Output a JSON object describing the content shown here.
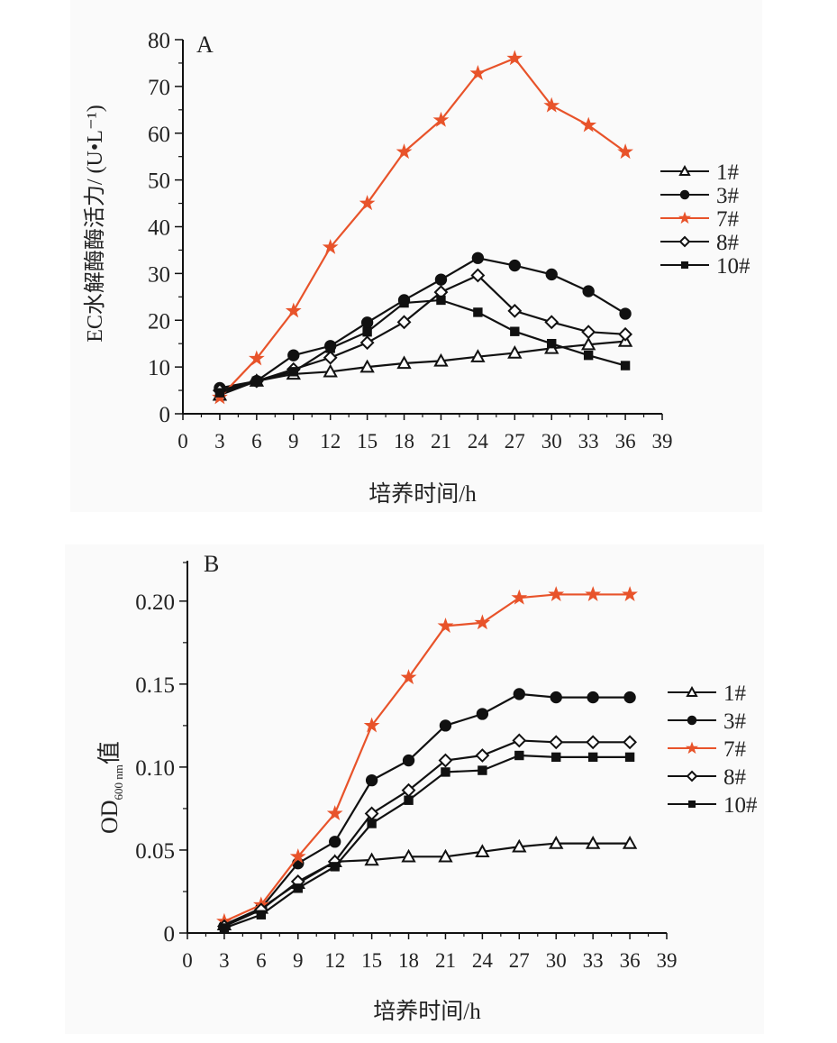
{
  "colors": {
    "highlight": "#e8532a",
    "series_default": "#111111",
    "panel_background": "#fafafa"
  },
  "chart_data": [
    {
      "type": "line",
      "panel_label": "A",
      "title": "",
      "xlabel": "培养时间/h",
      "ylabel": "EC水解酶酶活力/ (U•L⁻¹)",
      "xlim": [
        0,
        39
      ],
      "ylim": [
        0,
        80
      ],
      "x_ticks": [
        0,
        3,
        6,
        9,
        12,
        15,
        18,
        21,
        24,
        27,
        30,
        33,
        36,
        39
      ],
      "x_tick_labels": [
        "0",
        "3",
        "6",
        "9",
        "12",
        "15",
        "18",
        "21",
        "24",
        "27",
        "30",
        "33",
        "36",
        "39"
      ],
      "y_ticks": [
        0,
        10,
        20,
        30,
        40,
        50,
        60,
        70,
        80
      ],
      "y_tick_labels": [
        "0",
        "10",
        "20",
        "30",
        "40",
        "50",
        "60",
        "70",
        "80"
      ],
      "grid": false,
      "legend_position": "right",
      "x": [
        3,
        6,
        9,
        12,
        15,
        18,
        21,
        24,
        27,
        30,
        33,
        36
      ],
      "series": [
        {
          "name": "1#",
          "marker": "triangle-open",
          "color": "#111111",
          "values": [
            4.0,
            7.0,
            8.5,
            9.0,
            10.0,
            10.8,
            11.3,
            12.2,
            13.0,
            14.0,
            14.8,
            15.5
          ]
        },
        {
          "name": "3#",
          "marker": "circle-filled",
          "color": "#111111",
          "values": [
            5.5,
            7.0,
            12.5,
            14.5,
            19.5,
            24.3,
            28.7,
            33.3,
            31.7,
            29.8,
            26.2,
            21.4
          ]
        },
        {
          "name": "7#",
          "marker": "star-filled",
          "color": "#e8532a",
          "values": [
            3.5,
            11.8,
            22.0,
            35.6,
            45.0,
            56.0,
            62.8,
            72.8,
            76.0,
            65.9,
            61.7,
            56.0
          ]
        },
        {
          "name": "8#",
          "marker": "diamond-open",
          "color": "#111111",
          "values": [
            5.0,
            7.0,
            9.5,
            12.0,
            15.2,
            19.6,
            26.0,
            29.6,
            22.0,
            19.6,
            17.5,
            17.0
          ]
        },
        {
          "name": "10#",
          "marker": "square-filled",
          "color": "#111111",
          "values": [
            4.5,
            7.0,
            9.0,
            14.0,
            17.5,
            23.7,
            24.3,
            21.7,
            17.6,
            15.0,
            12.5,
            10.3
          ]
        }
      ]
    },
    {
      "type": "line",
      "panel_label": "B",
      "title": "",
      "xlabel": "培养时间/h",
      "ylabel": "OD",
      "ylabel_subscript": "600 nm",
      "ylabel_suffix": "值",
      "xlim": [
        0,
        39
      ],
      "ylim": [
        0,
        0.22
      ],
      "x_ticks": [
        0,
        3,
        6,
        9,
        12,
        15,
        18,
        21,
        24,
        27,
        30,
        33,
        36,
        39
      ],
      "x_tick_labels": [
        "0",
        "3",
        "6",
        "9",
        "12",
        "15",
        "18",
        "21",
        "24",
        "27",
        "30",
        "33",
        "36",
        "39"
      ],
      "y_ticks": [
        0,
        0.05,
        0.1,
        0.15,
        0.2
      ],
      "y_tick_labels": [
        "0",
        "0.05",
        "0.10",
        "0.15",
        "0.20"
      ],
      "grid": false,
      "legend_position": "right",
      "x": [
        3,
        6,
        9,
        12,
        15,
        18,
        21,
        24,
        27,
        30,
        33,
        36
      ],
      "series": [
        {
          "name": "1#",
          "marker": "triangle-open",
          "color": "#111111",
          "values": [
            0.005,
            0.015,
            0.03,
            0.043,
            0.044,
            0.046,
            0.046,
            0.049,
            0.052,
            0.054,
            0.054,
            0.054
          ]
        },
        {
          "name": "3#",
          "marker": "circle-filled",
          "color": "#111111",
          "values": [
            0.004,
            0.015,
            0.042,
            0.055,
            0.092,
            0.104,
            0.125,
            0.132,
            0.144,
            0.142,
            0.142,
            0.142
          ]
        },
        {
          "name": "7#",
          "marker": "star-filled",
          "color": "#e8532a",
          "values": [
            0.007,
            0.017,
            0.046,
            0.072,
            0.125,
            0.154,
            0.185,
            0.187,
            0.202,
            0.204,
            0.204,
            0.204
          ]
        },
        {
          "name": "8#",
          "marker": "diamond-open",
          "color": "#111111",
          "values": [
            0.004,
            0.014,
            0.031,
            0.043,
            0.072,
            0.086,
            0.104,
            0.107,
            0.116,
            0.115,
            0.115,
            0.115
          ]
        },
        {
          "name": "10#",
          "marker": "square-filled",
          "color": "#111111",
          "values": [
            0.003,
            0.011,
            0.027,
            0.04,
            0.066,
            0.08,
            0.097,
            0.098,
            0.107,
            0.106,
            0.106,
            0.106
          ]
        }
      ]
    }
  ]
}
